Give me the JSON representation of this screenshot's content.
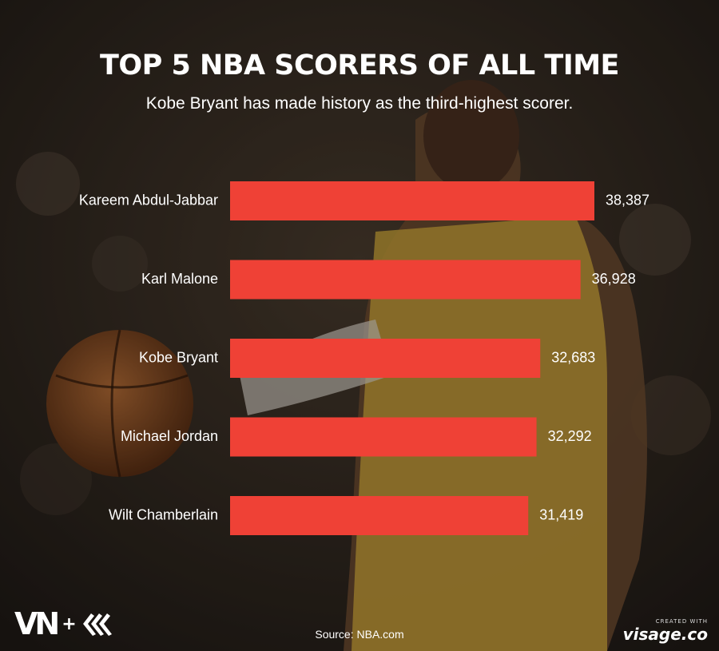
{
  "chart_data": {
    "type": "bar",
    "orientation": "horizontal",
    "title": "TOP 5 NBA SCORERS OF ALL TIME",
    "subtitle": "Kobe Bryant has made history as the third-highest scorer.",
    "categories": [
      "Kareem Abdul-Jabbar",
      "Karl Malone",
      "Kobe Bryant",
      "Michael Jordan",
      "Wilt Chamberlain"
    ],
    "values": [
      38387,
      36928,
      32683,
      32292,
      31419
    ],
    "value_labels": [
      "38,387",
      "36,928",
      "32,683",
      "32,292",
      "31,419"
    ],
    "bar_color": "#ef4136",
    "xlim": [
      0,
      38387
    ],
    "grid": false,
    "legend": "none"
  },
  "source": "Source: NBA.com",
  "branding": {
    "logo_text": "VN",
    "logo_plus": "+",
    "credit_small": "CREATED WITH",
    "credit_brand": "visage.co"
  }
}
